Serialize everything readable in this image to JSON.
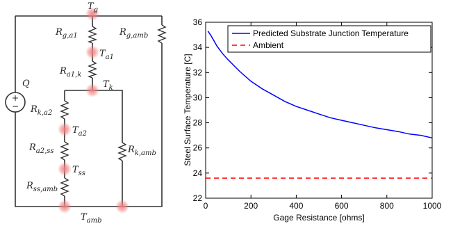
{
  "circuit": {
    "source_label": "Q",
    "source_plus": "+",
    "source_minus": "−",
    "nodes": {
      "tg": {
        "main": "T",
        "sub": "g"
      },
      "ta1": {
        "main": "T",
        "sub": "a1"
      },
      "tk": {
        "main": "T",
        "sub": "k"
      },
      "ta2": {
        "main": "T",
        "sub": "a2"
      },
      "tss": {
        "main": "T",
        "sub": "ss"
      },
      "tamb": {
        "main": "T",
        "sub": "amb"
      }
    },
    "resistors": {
      "rga1": {
        "main": "R",
        "sub": "g,a1"
      },
      "rgamb": {
        "main": "R",
        "sub": "g,amb"
      },
      "ra1k": {
        "main": "R",
        "sub": "a1,k"
      },
      "rka2": {
        "main": "R",
        "sub": "k,a2"
      },
      "ra2ss": {
        "main": "R",
        "sub": "a2,ss"
      },
      "rssamb": {
        "main": "R",
        "sub": "ss,amb"
      },
      "rkamb": {
        "main": "R",
        "sub": "k,amb"
      }
    },
    "highlight_color": "#f08080"
  },
  "chart_data": {
    "type": "line",
    "xlabel": "Gage Resistance [ohms]",
    "ylabel": "Steel Surface Temperature [C]",
    "xlim": [
      0,
      1000
    ],
    "ylim": [
      22,
      36
    ],
    "xticks": [
      0,
      200,
      400,
      600,
      800,
      1000
    ],
    "yticks": [
      22,
      24,
      26,
      28,
      30,
      32,
      34,
      36
    ],
    "grid": false,
    "legend_position": "top-right",
    "series": [
      {
        "name": "Predicted Substrate Junction Temperature",
        "color": "#0000ff",
        "style": "solid",
        "x": [
          10,
          25,
          50,
          75,
          100,
          150,
          200,
          250,
          300,
          350,
          400,
          450,
          500,
          550,
          600,
          650,
          700,
          750,
          800,
          850,
          900,
          950,
          1000
        ],
        "y": [
          35.3,
          34.9,
          34.1,
          33.5,
          33.0,
          32.1,
          31.3,
          30.7,
          30.2,
          29.7,
          29.3,
          29.0,
          28.7,
          28.4,
          28.2,
          28.0,
          27.8,
          27.6,
          27.45,
          27.3,
          27.1,
          27.0,
          26.8
        ]
      },
      {
        "name": "Ambient",
        "color": "#ff0000",
        "style": "dashed",
        "x": [
          0,
          1000
        ],
        "y": [
          23.6,
          23.6
        ]
      }
    ]
  }
}
